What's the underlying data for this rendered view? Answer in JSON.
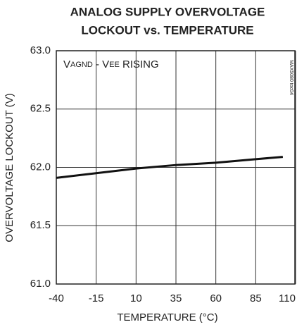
{
  "chart_data": {
    "type": "line",
    "title": [
      "ANALOG SUPPLY OVERVOLTAGE",
      "LOCKOUT vs. TEMPERATURE"
    ],
    "annotation": [
      "V",
      "AGND",
      " - V",
      "EE",
      " RISING"
    ],
    "side_note": "MAX5080 toc04",
    "x_label": "TEMPERATURE (°C)",
    "y_label": "OVERVOLTAGE LOCKOUT (V)",
    "x": [
      -40,
      -15,
      10,
      35,
      60,
      85,
      102
    ],
    "series": [
      {
        "name": "VAGND - VEE RISING",
        "color": "#111111",
        "values": [
          61.91,
          61.95,
          61.99,
          62.02,
          62.04,
          62.07,
          62.09
        ]
      }
    ],
    "xlim": [
      -40,
      110
    ],
    "xticks": [
      -40,
      -15,
      10,
      35,
      60,
      85,
      110
    ],
    "ylim": [
      61,
      63
    ],
    "yticks": [
      {
        "value": 61,
        "label": "61.0"
      },
      {
        "value": 61.5,
        "label": "61.5"
      },
      {
        "value": 62,
        "label": "62.0"
      },
      {
        "value": 62.5,
        "label": "62.5"
      },
      {
        "value": 63,
        "label": "63.0"
      }
    ],
    "grid": true
  }
}
